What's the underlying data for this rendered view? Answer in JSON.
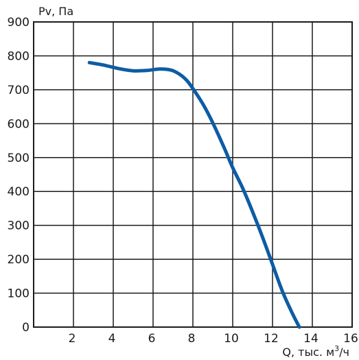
{
  "chart_data": {
    "type": "line",
    "title": "",
    "ylabel": "Pv, Па",
    "xlabel": {
      "prefix": "Q, тыс. м",
      "superscript": "3",
      "suffix": "/ч"
    },
    "xlim": [
      0,
      16
    ],
    "ylim": [
      0,
      900
    ],
    "x_ticks": [
      2,
      4,
      6,
      8,
      10,
      12,
      14,
      16
    ],
    "y_ticks": [
      0,
      100,
      200,
      300,
      400,
      500,
      600,
      700,
      800,
      900
    ],
    "grid": true,
    "line_color": "#0d5ca5",
    "series": [
      {
        "x": [
          2.8,
          3.5,
          4.3,
          5.0,
          5.7,
          6.3,
          6.9,
          7.3,
          7.7,
          8.1,
          8.6,
          9.1,
          9.6,
          10.0,
          10.5,
          11.0,
          11.5,
          12.0,
          12.5,
          13.0,
          13.35
        ],
        "values": [
          780,
          773,
          762,
          756,
          757,
          761,
          758,
          747,
          727,
          695,
          648,
          590,
          525,
          470,
          410,
          340,
          265,
          185,
          105,
          40,
          0
        ]
      }
    ]
  }
}
